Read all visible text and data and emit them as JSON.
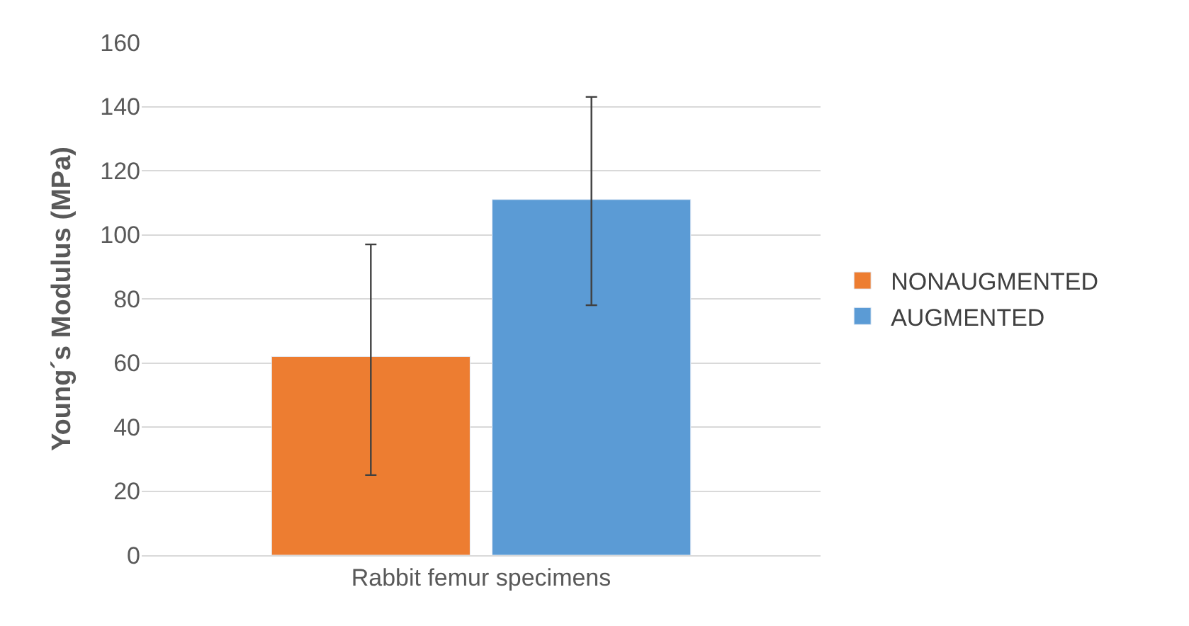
{
  "chart_data": {
    "type": "bar",
    "ylabel": "Young´s Modulus (MPa)",
    "categories": [
      "Rabbit femur specimens"
    ],
    "series": [
      {
        "name": "NONAUGMENTED",
        "color": "#ed7d31",
        "values": [
          62
        ],
        "errors": [
          [
            25,
            97
          ]
        ]
      },
      {
        "name": "AUGMENTED",
        "color": "#5b9bd5",
        "values": [
          111
        ],
        "errors": [
          [
            78,
            143
          ]
        ]
      }
    ],
    "ylim": [
      0,
      160
    ],
    "yticks": [
      0,
      20,
      40,
      60,
      80,
      100,
      120,
      140,
      160
    ],
    "grid": "y",
    "legend": "right"
  }
}
